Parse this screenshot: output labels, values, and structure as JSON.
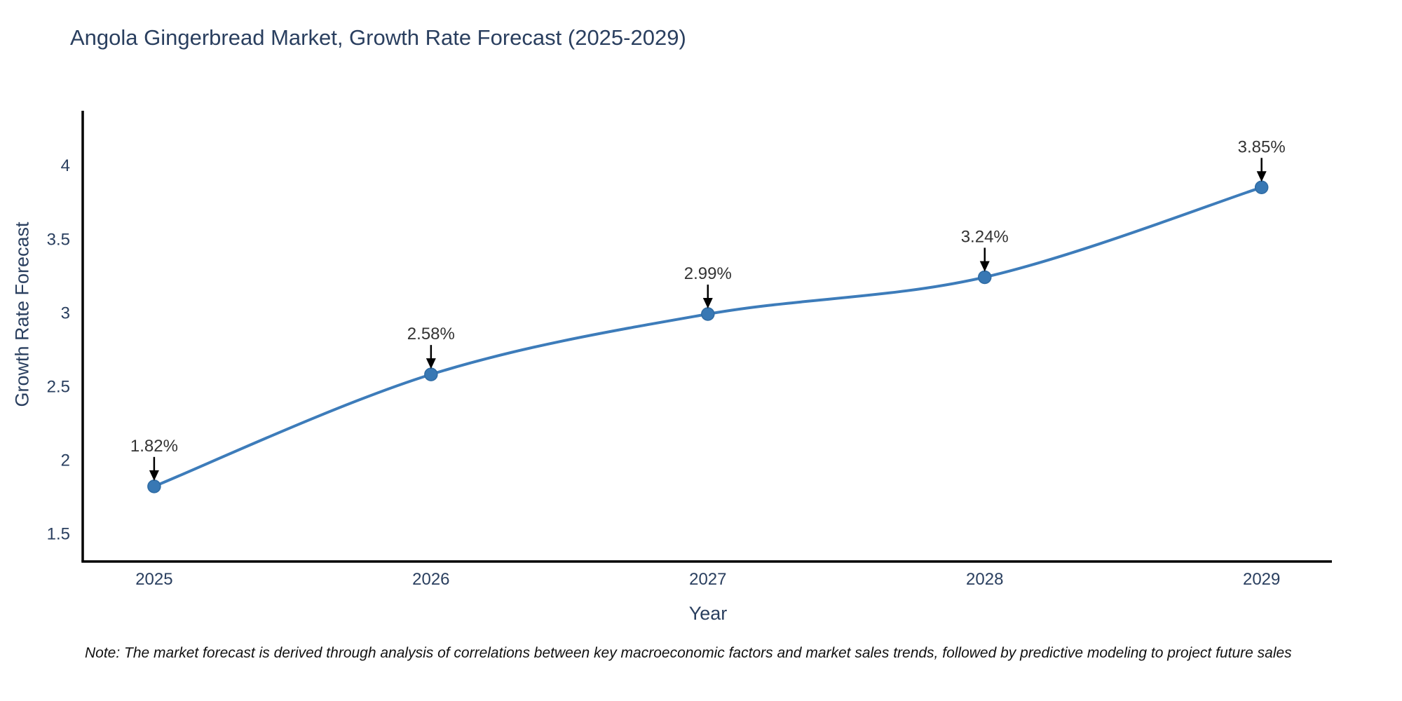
{
  "note": "Note: The market forecast is derived through analysis of correlations between key macroeconomic factors and market sales trends, followed by predictive modeling to project future sales",
  "chart_data": {
    "type": "line",
    "title": "Angola Gingerbread Market, Growth Rate Forecast (2025-2029)",
    "xlabel": "Year",
    "ylabel": "Growth Rate Forecast",
    "x": [
      2025,
      2026,
      2027,
      2028,
      2029
    ],
    "values": [
      1.82,
      2.58,
      2.99,
      3.24,
      3.85
    ],
    "point_labels": [
      "1.82%",
      "2.58%",
      "2.99%",
      "3.24%",
      "3.85%"
    ],
    "x_ticks": [
      "2025",
      "2026",
      "2027",
      "2028",
      "2029"
    ],
    "y_ticks": [
      "1.5",
      "2",
      "2.5",
      "3",
      "3.5",
      "4"
    ],
    "xlim": [
      2024.742,
      2029.254
    ],
    "ylim": [
      1.31,
      4.37
    ],
    "grid": false,
    "legend": "none",
    "line_shape": "spline",
    "colors": {
      "line": "#3d7cba",
      "marker": "#3878b4",
      "marker_edge": "#2f6ba3",
      "axis_line": "#000000",
      "axis_text": "#2a3f5f",
      "annotation_text": "#333333",
      "annotation_arrow": "#000000",
      "background": "#ffffff"
    }
  }
}
